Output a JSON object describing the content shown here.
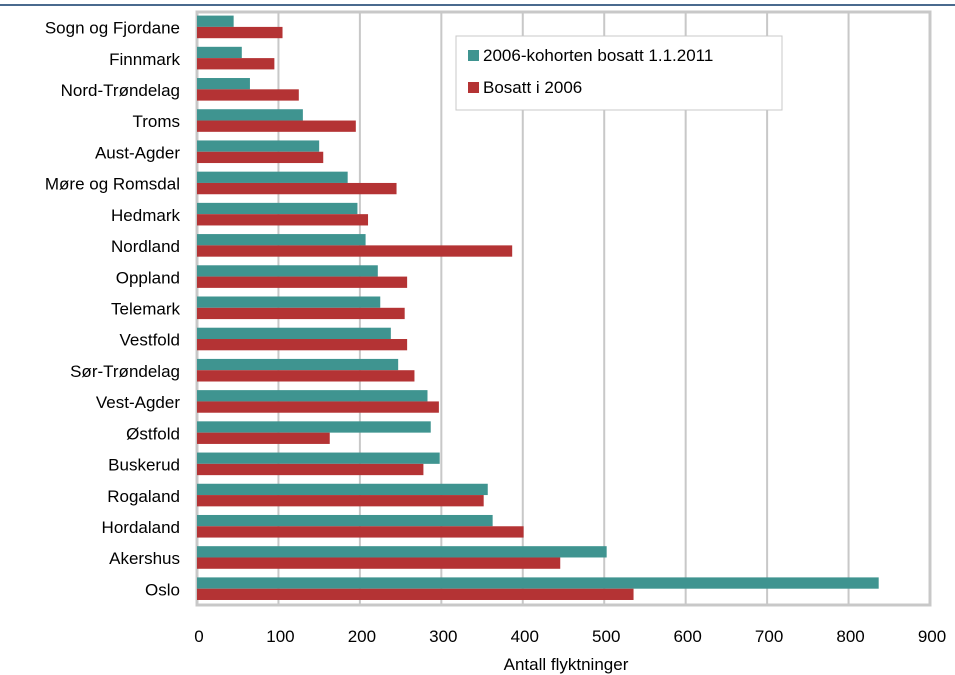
{
  "chart_data": {
    "type": "bar",
    "orientation": "horizontal",
    "categories": [
      "Sogn og Fjordane",
      "Finnmark",
      "Nord-Trøndelag",
      "Troms",
      "Aust-Agder",
      "Møre og Romsdal",
      "Hedmark",
      "Nordland",
      "Oppland",
      "Telemark",
      "Vestfold",
      "Sør-Trøndelag",
      "Vest-Agder",
      "Østfold",
      "Buskerud",
      "Rogaland",
      "Hordaland",
      "Akershus",
      "Oslo"
    ],
    "series": [
      {
        "name": "2006-kohorten bosatt 1.1.2011",
        "color": "#3f9490",
        "values": [
          45,
          55,
          65,
          130,
          150,
          185,
          197,
          207,
          222,
          225,
          238,
          247,
          283,
          287,
          298,
          357,
          363,
          503,
          837
        ]
      },
      {
        "name": "Bosatt i 2006",
        "color": "#b43334",
        "values": [
          105,
          95,
          125,
          195,
          155,
          245,
          210,
          387,
          258,
          255,
          258,
          267,
          297,
          163,
          278,
          352,
          401,
          446,
          536
        ]
      }
    ],
    "xlabel": "Antall flyktninger",
    "xlim": [
      0,
      900
    ],
    "xticks": [
      0,
      100,
      200,
      300,
      400,
      500,
      600,
      700,
      800,
      900
    ],
    "grid": "vertical",
    "legend_position": "top-right"
  }
}
